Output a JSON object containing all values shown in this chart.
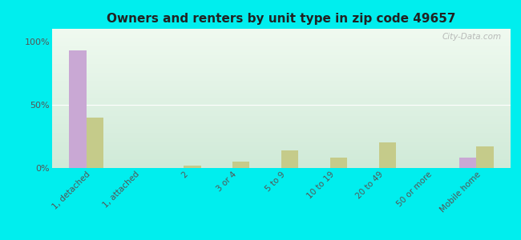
{
  "title": "Owners and renters by unit type in zip code 49657",
  "categories": [
    "1, detached",
    "1, attached",
    "2",
    "3 or 4",
    "5 to 9",
    "10 to 19",
    "20 to 49",
    "50 or more",
    "Mobile home"
  ],
  "owner_values": [
    93,
    0,
    0,
    0,
    0,
    0,
    0,
    0,
    8
  ],
  "renter_values": [
    40,
    0,
    2,
    5,
    14,
    8,
    20,
    0,
    17
  ],
  "owner_color": "#c9a8d4",
  "renter_color": "#c5cb8a",
  "background_color": "#00eeee",
  "yticks": [
    0,
    50,
    100
  ],
  "ylim": [
    0,
    110
  ],
  "bar_width": 0.35,
  "watermark": "City-Data.com"
}
